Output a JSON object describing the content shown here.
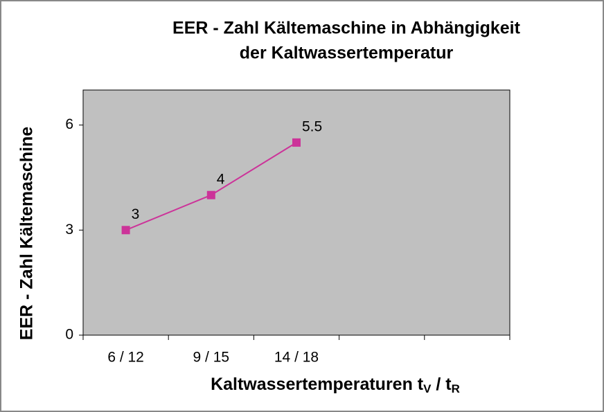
{
  "chart_data": {
    "type": "line",
    "title": [
      "EER - Zahl Kältemaschine in Abhängigkeit",
      "der Kaltwassertemperatur"
    ],
    "y_label": "EER - Zahl Kältemaschine",
    "x_label": [
      "Kaltwassertemperaturen t",
      "V",
      " / t",
      "R"
    ],
    "categories": [
      "6 / 12",
      "9 / 15",
      "14 / 18",
      null,
      null
    ],
    "series": [
      {
        "color": "#cc3399",
        "values": [
          3,
          4,
          5.5,
          null,
          null
        ]
      }
    ],
    "ylim": [
      0,
      7
    ],
    "yticks": [
      0,
      3,
      6
    ],
    "plot_background": "#c0c0c0"
  }
}
